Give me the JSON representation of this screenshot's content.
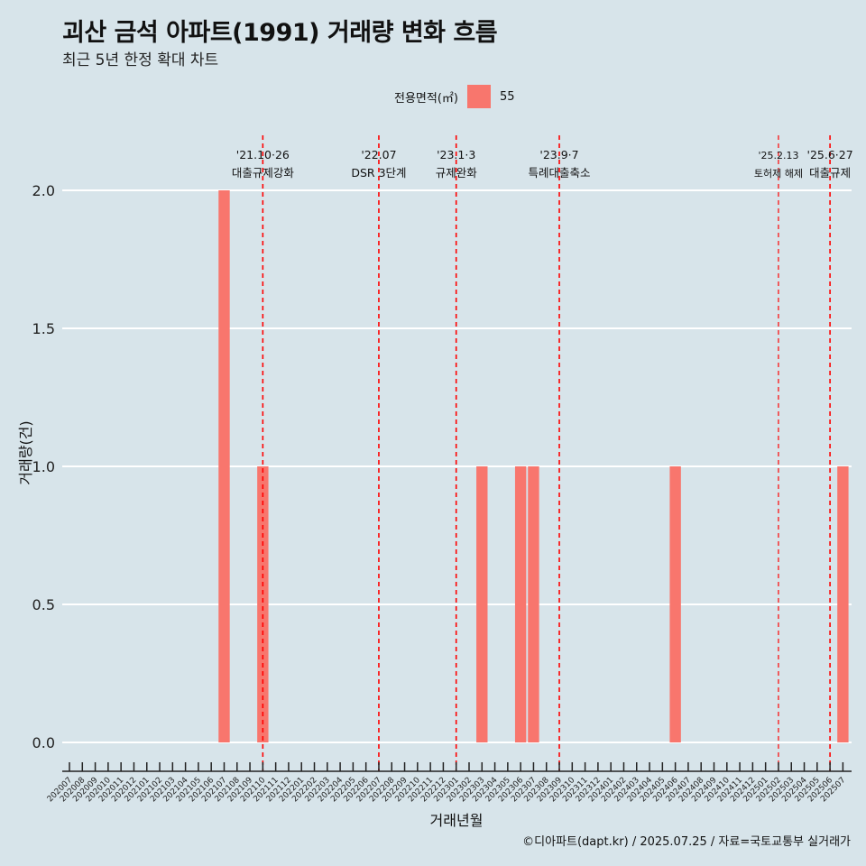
{
  "title": "괴산 금석 아파트(1991) 거래량 변화 흐름",
  "subtitle": "최근 5년 한정 확대 차트",
  "caption": "©디아파트(dapt.kr) / 2025.07.25 / 자료=국토교통부 실거래가",
  "colors": {
    "background": "#d7e4ea",
    "bar": "#f8766d",
    "event_line": "#ff0000",
    "grid": "#ffffff"
  },
  "chart_data": {
    "type": "bar",
    "title": "괴산 금석 아파트(1991) 거래량 변화 흐름",
    "subtitle": "최근 5년 한정 확대 차트",
    "xlabel": "거래년월",
    "ylabel": "거래량(건)",
    "ylim": [
      0,
      2
    ],
    "yticks": [
      "0.0",
      "0.5",
      "1.0",
      "1.5",
      "2.0"
    ],
    "grid": "horizontal major lines",
    "legend": {
      "title": "전용면적(㎡)",
      "position": "top",
      "entries": [
        "55"
      ]
    },
    "categories": [
      "202007",
      "202008",
      "202009",
      "202010",
      "202011",
      "202012",
      "202101",
      "202102",
      "202103",
      "202104",
      "202105",
      "202106",
      "202107",
      "202108",
      "202109",
      "202110",
      "202111",
      "202112",
      "202201",
      "202202",
      "202203",
      "202204",
      "202205",
      "202206",
      "202207",
      "202208",
      "202209",
      "202210",
      "202211",
      "202212",
      "202301",
      "202302",
      "202303",
      "202304",
      "202305",
      "202306",
      "202307",
      "202308",
      "202309",
      "202310",
      "202311",
      "202312",
      "202401",
      "202402",
      "202403",
      "202404",
      "202405",
      "202406",
      "202407",
      "202408",
      "202409",
      "202410",
      "202411",
      "202412",
      "202501",
      "202502",
      "202503",
      "202504",
      "202505",
      "202506",
      "202507"
    ],
    "series": [
      {
        "name": "55",
        "color": "#f8766d",
        "values": [
          0,
          0,
          0,
          0,
          0,
          0,
          0,
          0,
          0,
          0,
          0,
          0,
          2,
          0,
          0,
          1,
          0,
          0,
          0,
          0,
          0,
          0,
          0,
          0,
          0,
          0,
          0,
          0,
          0,
          0,
          0,
          0,
          1,
          0,
          0,
          1,
          1,
          0,
          0,
          0,
          0,
          0,
          0,
          0,
          0,
          0,
          0,
          1,
          0,
          0,
          0,
          0,
          0,
          0,
          0,
          0,
          0,
          0,
          0,
          0,
          1
        ]
      }
    ],
    "annotations": [
      {
        "x": "202110",
        "date": "'21.10·26",
        "label": "대출규제강화",
        "small": false
      },
      {
        "x": "202207",
        "date": "'22.07",
        "label": "DSR 3단계",
        "small": false
      },
      {
        "x": "202301",
        "date": "'23.1·3",
        "label": "규제완화",
        "small": false
      },
      {
        "x": "202309",
        "date": "'23.9·7",
        "label": "특례대출축소",
        "small": false
      },
      {
        "x": "202502",
        "date": "'25.2.13",
        "label": "토허제 해제",
        "small": true
      },
      {
        "x": "202506",
        "date": "'25.6·27",
        "label": "대출규제",
        "small": false
      }
    ]
  }
}
